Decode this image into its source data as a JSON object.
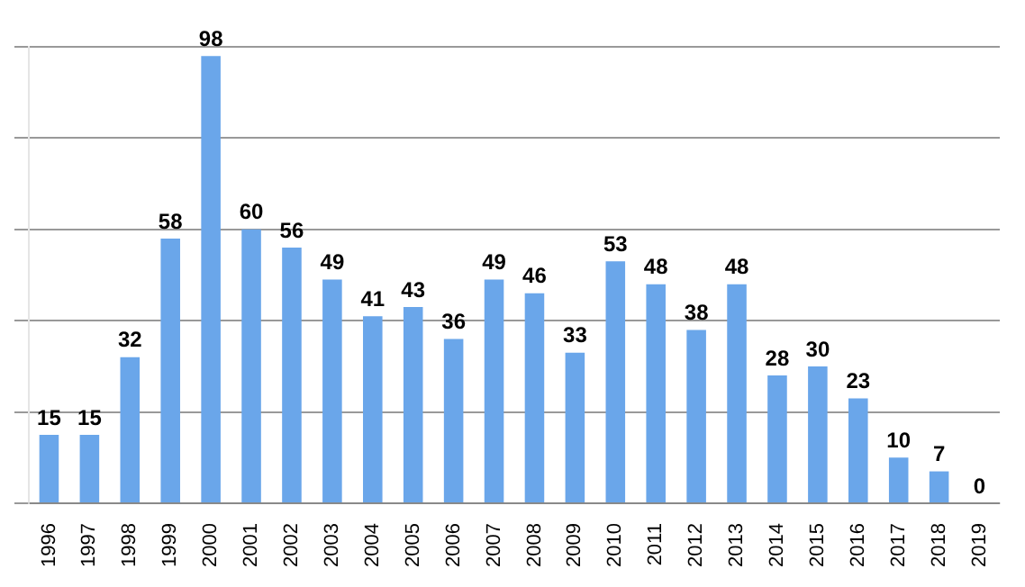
{
  "chart_data": {
    "type": "bar",
    "categories": [
      "1996",
      "1997",
      "1998",
      "1999",
      "2000",
      "2001",
      "2002",
      "2003",
      "2004",
      "2005",
      "2006",
      "2007",
      "2008",
      "2009",
      "2010",
      "2011",
      "2012",
      "2013",
      "2014",
      "2015",
      "2016",
      "2017",
      "2018",
      "2019"
    ],
    "values": [
      15,
      15,
      32,
      58,
      98,
      60,
      56,
      49,
      41,
      43,
      36,
      49,
      46,
      33,
      53,
      48,
      38,
      48,
      28,
      30,
      23,
      10,
      7,
      0
    ],
    "color": "#6aa6ea",
    "ylim": [
      0,
      100
    ],
    "yticks": [
      {
        "value": 0,
        "label": null
      },
      {
        "value": 20,
        "label": null
      },
      {
        "value": 40,
        "label": null
      },
      {
        "value": 60,
        "label": null
      },
      {
        "value": 80,
        "label": null
      },
      {
        "value": 100,
        "label": null
      }
    ],
    "grid": "y",
    "data_labels": true,
    "tick_labels": "x"
  }
}
